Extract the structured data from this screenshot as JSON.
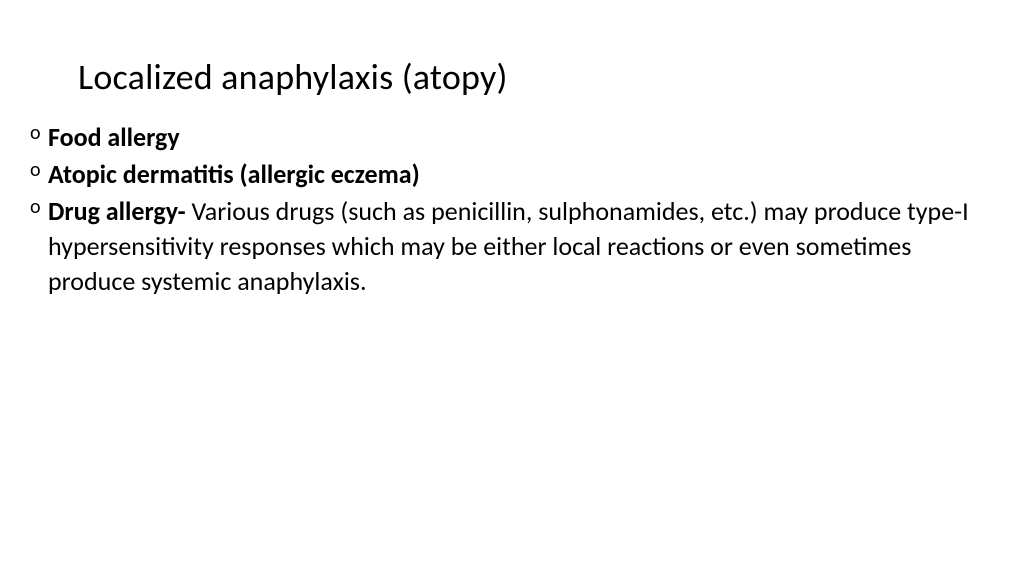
{
  "background_color": "#ffffff",
  "text_color": "#000000",
  "title": {
    "text": "Localized anaphylaxis (atopy)",
    "fontsize": 36,
    "fontweight": 400
  },
  "body": {
    "fontsize": 26,
    "items": [
      {
        "bold": "Food allergy",
        "rest": ""
      },
      {
        "bold": "Atopic dermatitis (allergic eczema)",
        "rest": ""
      },
      {
        "bold": "Drug allergy- ",
        "rest": "Various drugs (such as penicillin, sulphonamides, etc.) may produce type-I hypersensitivity responses which may be either local reactions or even sometimes produce systemic anaphylaxis."
      }
    ]
  }
}
